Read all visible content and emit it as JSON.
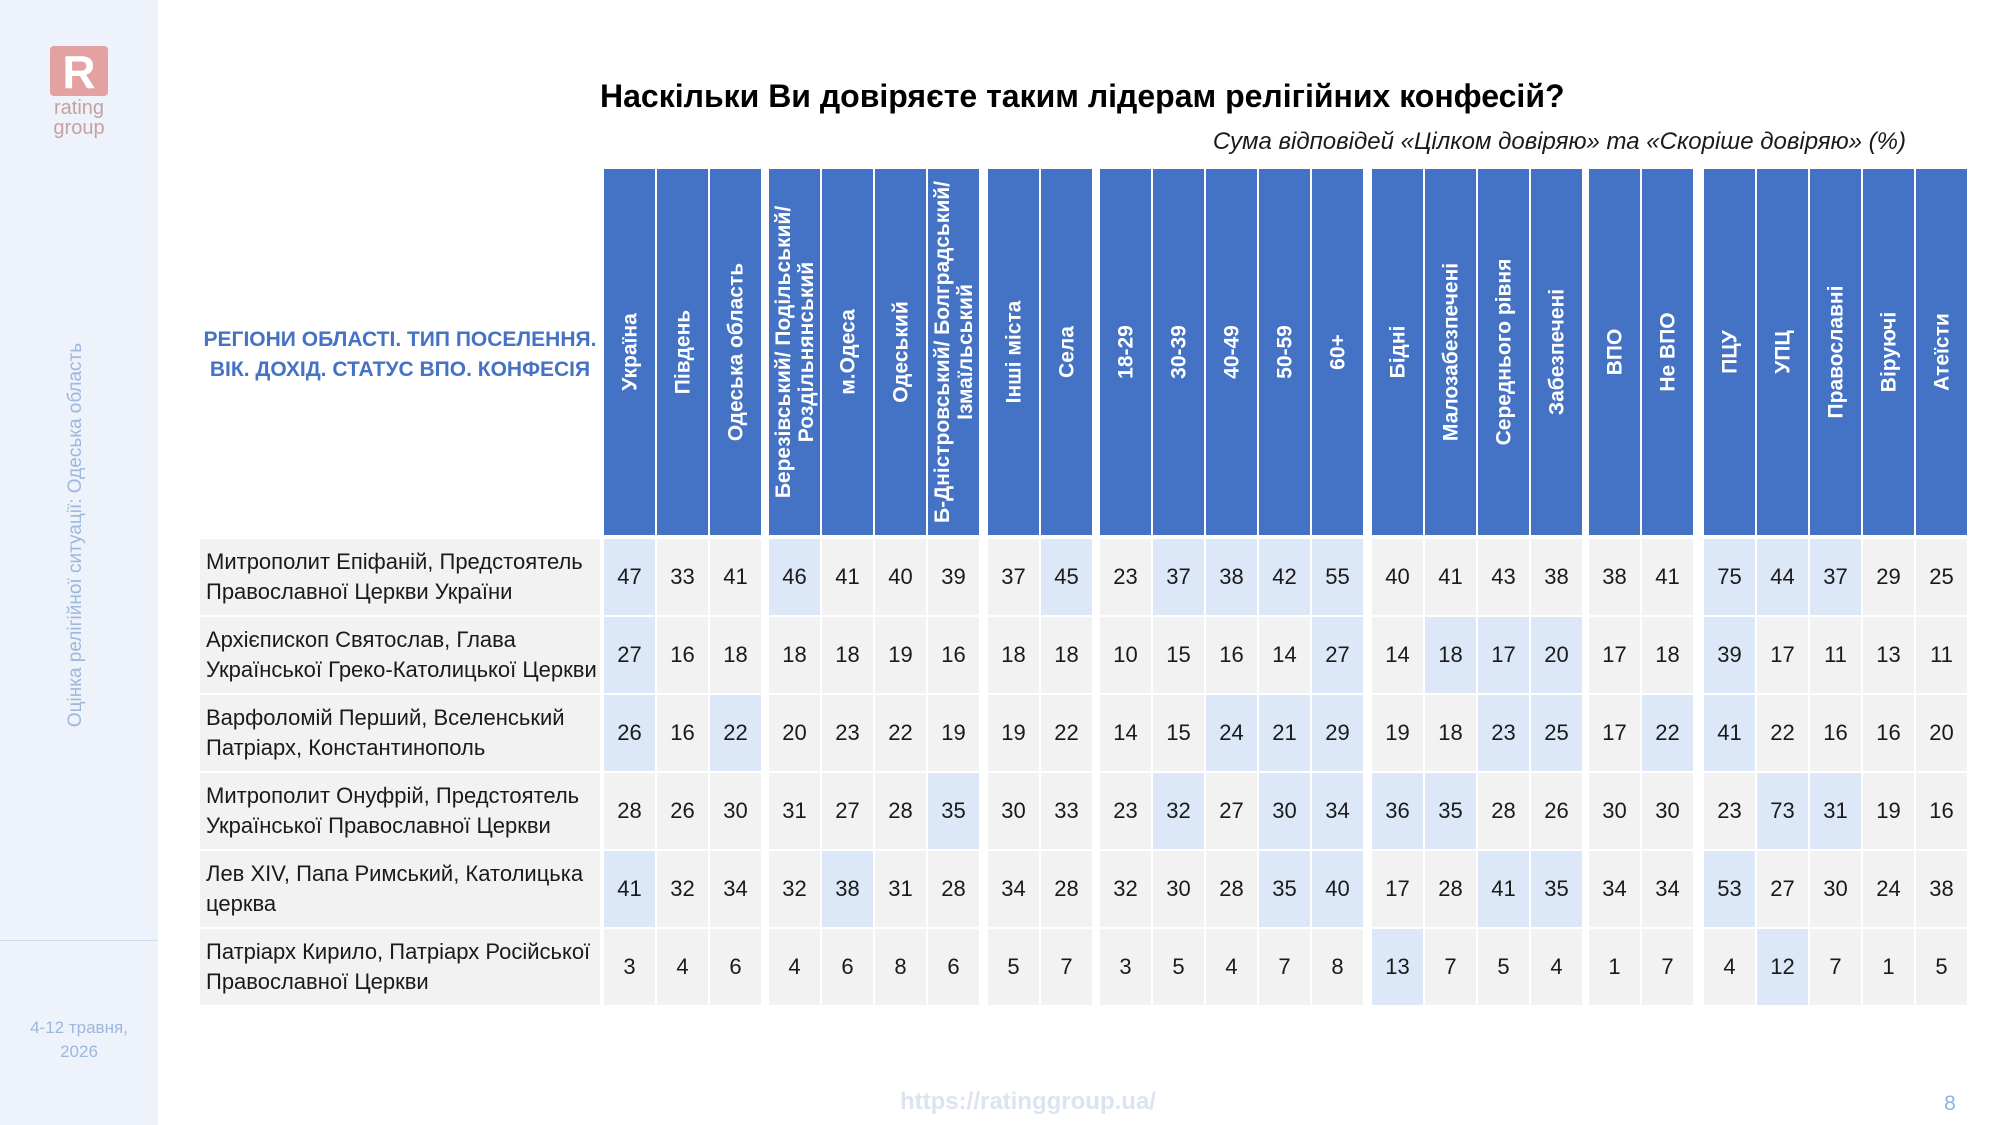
{
  "sidebar": {
    "logo_letter": "R",
    "logo_word1": "rating",
    "logo_word2": "group",
    "vertical_title": "Оцінка релігійної ситуації: Одеська область",
    "date_line1": "4-12 травня,",
    "date_line2": "2026"
  },
  "colors": {
    "header_blue": "#4472c4",
    "highlight": "#dce8f8",
    "cell_bg": "#f2f2f2",
    "logo": "#e3a1a1"
  },
  "chart_data": {
    "type": "table",
    "title": "Наскільки Ви довіряєте таким лідерам релігійних конфесій?",
    "subtitle": "Сума відповідей «Цілком довіряю» та «Скоріше довіряю» (%)",
    "row_header": [
      "РЕГІОНИ ОБЛАСТІ. ТИП ПОСЕЛЕННЯ.",
      "ВІК. ДОХІД. СТАТУС ВПО. КОНФЕСІЯ"
    ],
    "columns": [
      "Україна",
      "Південь",
      "Одеська область",
      "Березівський/ Подільський/ Роздільнянський",
      "м.Одеса",
      "Одеський",
      "Б-Дністровський/ Болградський/ Ізмаїльський",
      "Інші міста",
      "Села",
      "18-29",
      "30-39",
      "40-49",
      "50-59",
      "60+",
      "Бідні",
      "Малозабезпечені",
      "Середнього рівня",
      "Забезпечені",
      "ВПО",
      "Не ВПО",
      "ПЦУ",
      "УПЦ",
      "Православні",
      "Віруючі",
      "Атеїсти"
    ],
    "rows": [
      {
        "label": [
          "Митрополит Епіфаній, Предстоятель",
          "Православної Церкви України"
        ],
        "values": [
          47,
          33,
          41,
          46,
          41,
          40,
          39,
          37,
          45,
          23,
          37,
          38,
          42,
          55,
          40,
          41,
          43,
          38,
          38,
          41,
          75,
          44,
          37,
          29,
          25
        ],
        "highlight": [
          0,
          3,
          8,
          10,
          11,
          12,
          13,
          20,
          21,
          22
        ]
      },
      {
        "label": [
          "Архієпископ Святослав, Глава",
          "Української Греко-Католицької Церкви"
        ],
        "values": [
          27,
          16,
          18,
          18,
          18,
          19,
          16,
          18,
          18,
          10,
          15,
          16,
          14,
          27,
          14,
          18,
          17,
          20,
          17,
          18,
          39,
          17,
          11,
          13,
          11
        ],
        "highlight": [
          0,
          13,
          15,
          16,
          17,
          20
        ]
      },
      {
        "label": [
          "Варфоломій Перший, Вселенський",
          "Патріарх, Константинополь"
        ],
        "values": [
          26,
          16,
          22,
          20,
          23,
          22,
          19,
          19,
          22,
          14,
          15,
          24,
          21,
          29,
          19,
          18,
          23,
          25,
          17,
          22,
          41,
          22,
          16,
          16,
          20
        ],
        "highlight": [
          0,
          2,
          11,
          12,
          13,
          16,
          17,
          19,
          20
        ]
      },
      {
        "label": [
          "Митрополит Онуфрій, Предстоятель",
          "Української Православної Церкви"
        ],
        "values": [
          28,
          26,
          30,
          31,
          27,
          28,
          35,
          30,
          33,
          23,
          32,
          27,
          30,
          34,
          36,
          35,
          28,
          26,
          30,
          30,
          23,
          73,
          31,
          19,
          16
        ],
        "highlight": [
          6,
          10,
          12,
          13,
          14,
          15,
          21,
          22
        ]
      },
      {
        "label": [
          "Лев XIV, Папа Римський, Католицька",
          "церква"
        ],
        "values": [
          41,
          32,
          34,
          32,
          38,
          31,
          28,
          34,
          28,
          32,
          30,
          28,
          35,
          40,
          17,
          28,
          41,
          35,
          34,
          34,
          53,
          27,
          30,
          24,
          38
        ],
        "highlight": [
          0,
          4,
          12,
          13,
          16,
          17,
          20
        ]
      },
      {
        "label": [
          "Патріарх Кирило, Патріарх Російської",
          "Православної Церкви"
        ],
        "values": [
          3,
          4,
          6,
          4,
          6,
          8,
          6,
          5,
          7,
          3,
          5,
          4,
          7,
          8,
          13,
          7,
          5,
          4,
          1,
          7,
          4,
          12,
          7,
          1,
          5
        ],
        "highlight": [
          14,
          21
        ]
      }
    ]
  },
  "footer": {
    "url": "https://ratinggroup.ua/",
    "page": "8"
  }
}
